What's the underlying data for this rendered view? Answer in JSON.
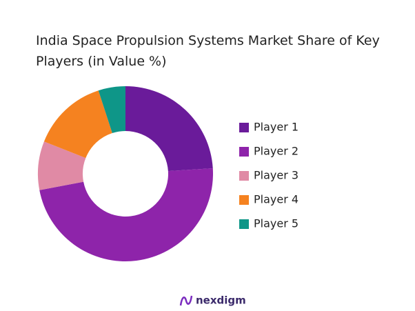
{
  "chart_data": {
    "type": "donut",
    "title": "India Space Propulsion Systems Market Share of Key Players (in Value %)",
    "categories": [
      "Player 1",
      "Player 2",
      "Player 3",
      "Player 4",
      "Player 5"
    ],
    "values": [
      24,
      48,
      9,
      14,
      5
    ],
    "colors": [
      "#6a1b9a",
      "#8e24aa",
      "#e08aa5",
      "#f58220",
      "#0e9688"
    ],
    "legend": "right"
  },
  "brand": "nexdigm"
}
